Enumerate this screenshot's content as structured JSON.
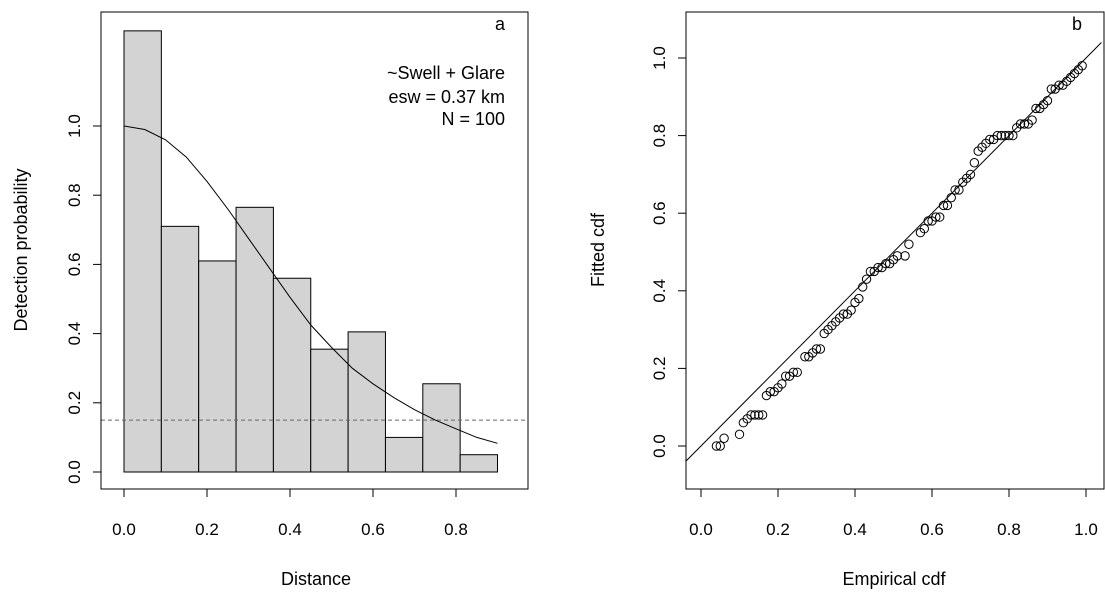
{
  "chart_data": [
    {
      "panel_id": "a",
      "type": "bar",
      "subtype": "histogram-with-fitted-curve",
      "title": "",
      "xlabel": "Distance",
      "ylabel": "Detection probability",
      "xlim": [
        0,
        0.9
      ],
      "ylim": [
        0,
        1.28
      ],
      "xticks": [
        "0.0",
        "0.2",
        "0.4",
        "0.6",
        "0.8"
      ],
      "xtick_values": [
        0,
        0.2,
        0.4,
        0.6,
        0.8
      ],
      "yticks": [
        "0.0",
        "0.2",
        "0.4",
        "0.6",
        "0.8",
        "1.0"
      ],
      "ytick_values": [
        0,
        0.2,
        0.4,
        0.6,
        0.8,
        1.0
      ],
      "bins": [
        {
          "start": 0.0,
          "end": 0.09,
          "value": 1.275
        },
        {
          "start": 0.09,
          "end": 0.18,
          "value": 0.71
        },
        {
          "start": 0.18,
          "end": 0.27,
          "value": 0.61
        },
        {
          "start": 0.27,
          "end": 0.36,
          "value": 0.765
        },
        {
          "start": 0.36,
          "end": 0.45,
          "value": 0.56
        },
        {
          "start": 0.45,
          "end": 0.54,
          "value": 0.355
        },
        {
          "start": 0.54,
          "end": 0.63,
          "value": 0.405
        },
        {
          "start": 0.63,
          "end": 0.72,
          "value": 0.1
        },
        {
          "start": 0.72,
          "end": 0.81,
          "value": 0.255
        },
        {
          "start": 0.81,
          "end": 0.9,
          "value": 0.05
        }
      ],
      "curve": {
        "x": [
          0,
          0.05,
          0.1,
          0.15,
          0.2,
          0.25,
          0.3,
          0.35,
          0.4,
          0.45,
          0.5,
          0.55,
          0.6,
          0.65,
          0.7,
          0.75,
          0.8,
          0.85,
          0.9
        ],
        "y": [
          1.0,
          0.99,
          0.96,
          0.91,
          0.84,
          0.76,
          0.675,
          0.59,
          0.505,
          0.425,
          0.36,
          0.3,
          0.255,
          0.215,
          0.18,
          0.15,
          0.125,
          0.1,
          0.083
        ]
      },
      "dashed_line_y": 0.15,
      "annotations": [
        "a",
        "~Swell + Glare",
        "esw =  0.37  km",
        "N =  100"
      ],
      "bar_color": "#d3d3d3"
    },
    {
      "panel_id": "b",
      "type": "scatter",
      "title": "",
      "xlabel": "Empirical cdf",
      "ylabel": "Fitted cdf",
      "xlim": [
        -0.04,
        1.04
      ],
      "ylim": [
        -0.12,
        1.12
      ],
      "xticks": [
        "0.0",
        "0.2",
        "0.4",
        "0.6",
        "0.8",
        "1.0"
      ],
      "xtick_values": [
        0,
        0.2,
        0.4,
        0.6,
        0.8,
        1.0
      ],
      "yticks": [
        "0.0",
        "0.2",
        "0.4",
        "0.6",
        "0.8",
        "1.0"
      ],
      "ytick_values": [
        0,
        0.2,
        0.4,
        0.6,
        0.8,
        1.0
      ],
      "reference_line": [
        [
          -0.04,
          -0.04
        ],
        [
          1.04,
          1.04
        ]
      ],
      "points": [
        [
          0.04,
          0.0
        ],
        [
          0.05,
          0.0
        ],
        [
          0.06,
          0.02
        ],
        [
          0.1,
          0.03
        ],
        [
          0.11,
          0.06
        ],
        [
          0.12,
          0.07
        ],
        [
          0.13,
          0.08
        ],
        [
          0.14,
          0.08
        ],
        [
          0.15,
          0.08
        ],
        [
          0.16,
          0.08
        ],
        [
          0.17,
          0.13
        ],
        [
          0.18,
          0.14
        ],
        [
          0.19,
          0.14
        ],
        [
          0.2,
          0.15
        ],
        [
          0.21,
          0.16
        ],
        [
          0.22,
          0.18
        ],
        [
          0.23,
          0.18
        ],
        [
          0.24,
          0.19
        ],
        [
          0.25,
          0.19
        ],
        [
          0.27,
          0.23
        ],
        [
          0.28,
          0.23
        ],
        [
          0.29,
          0.24
        ],
        [
          0.3,
          0.25
        ],
        [
          0.31,
          0.25
        ],
        [
          0.32,
          0.29
        ],
        [
          0.33,
          0.3
        ],
        [
          0.34,
          0.31
        ],
        [
          0.35,
          0.32
        ],
        [
          0.36,
          0.33
        ],
        [
          0.37,
          0.34
        ],
        [
          0.38,
          0.34
        ],
        [
          0.39,
          0.35
        ],
        [
          0.4,
          0.37
        ],
        [
          0.41,
          0.38
        ],
        [
          0.42,
          0.41
        ],
        [
          0.43,
          0.43
        ],
        [
          0.44,
          0.45
        ],
        [
          0.45,
          0.45
        ],
        [
          0.46,
          0.46
        ],
        [
          0.47,
          0.46
        ],
        [
          0.48,
          0.47
        ],
        [
          0.49,
          0.47
        ],
        [
          0.5,
          0.48
        ],
        [
          0.51,
          0.49
        ],
        [
          0.53,
          0.49
        ],
        [
          0.54,
          0.52
        ],
        [
          0.57,
          0.55
        ],
        [
          0.58,
          0.56
        ],
        [
          0.59,
          0.58
        ],
        [
          0.6,
          0.58
        ],
        [
          0.61,
          0.59
        ],
        [
          0.62,
          0.59
        ],
        [
          0.63,
          0.62
        ],
        [
          0.64,
          0.62
        ],
        [
          0.65,
          0.64
        ],
        [
          0.66,
          0.66
        ],
        [
          0.67,
          0.66
        ],
        [
          0.68,
          0.68
        ],
        [
          0.69,
          0.69
        ],
        [
          0.7,
          0.7
        ],
        [
          0.71,
          0.73
        ],
        [
          0.72,
          0.76
        ],
        [
          0.73,
          0.77
        ],
        [
          0.74,
          0.78
        ],
        [
          0.75,
          0.79
        ],
        [
          0.76,
          0.79
        ],
        [
          0.77,
          0.8
        ],
        [
          0.78,
          0.8
        ],
        [
          0.79,
          0.8
        ],
        [
          0.8,
          0.8
        ],
        [
          0.81,
          0.8
        ],
        [
          0.82,
          0.82
        ],
        [
          0.83,
          0.83
        ],
        [
          0.84,
          0.83
        ],
        [
          0.85,
          0.83
        ],
        [
          0.86,
          0.84
        ],
        [
          0.87,
          0.87
        ],
        [
          0.88,
          0.87
        ],
        [
          0.89,
          0.88
        ],
        [
          0.9,
          0.89
        ],
        [
          0.91,
          0.92
        ],
        [
          0.92,
          0.92
        ],
        [
          0.93,
          0.93
        ],
        [
          0.94,
          0.93
        ],
        [
          0.95,
          0.94
        ],
        [
          0.96,
          0.95
        ],
        [
          0.97,
          0.96
        ],
        [
          0.98,
          0.97
        ],
        [
          0.99,
          0.98
        ]
      ],
      "annotations": [
        "b"
      ]
    }
  ]
}
